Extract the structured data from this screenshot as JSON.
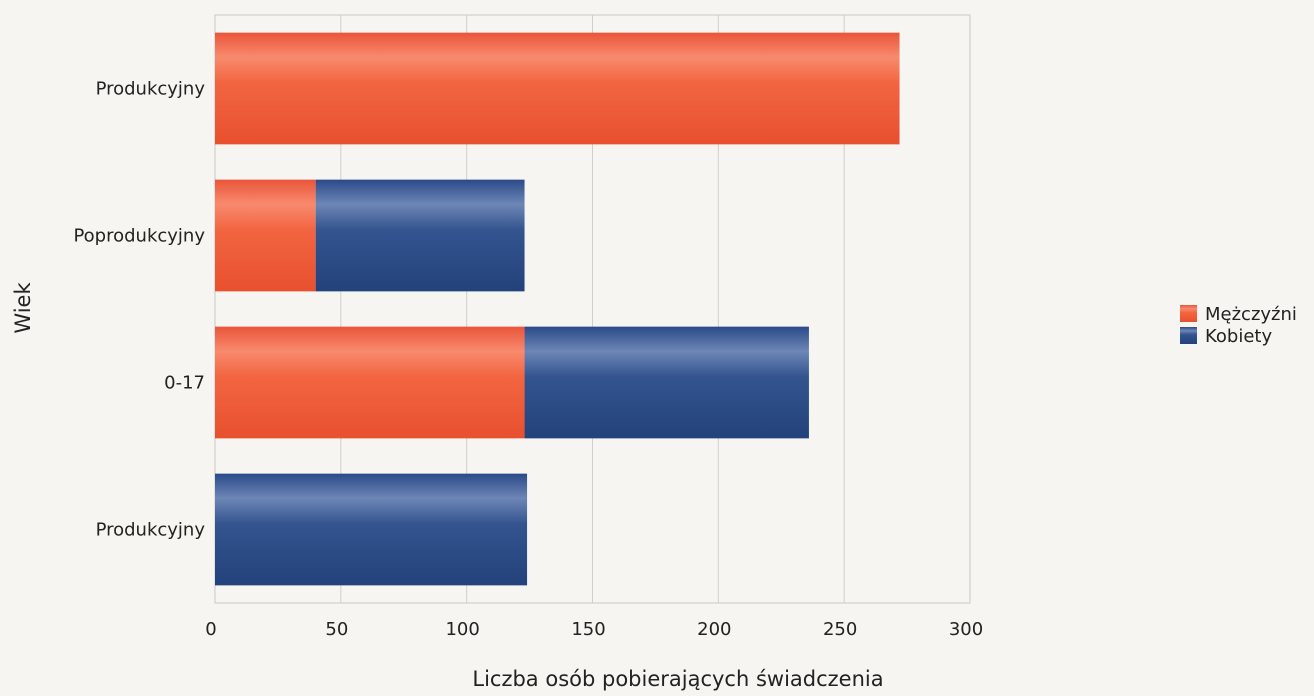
{
  "chart_data": {
    "type": "bar",
    "orientation": "horizontal",
    "stacked": true,
    "categories": [
      "Produkcyjny",
      "Poprodukcyjny",
      "0-17",
      "Produkcyjny"
    ],
    "series": [
      {
        "name": "Mężczyźni",
        "color": "#f26540",
        "values": [
          272,
          40,
          123,
          0
        ]
      },
      {
        "name": "Kobiety",
        "color": "#2f4f8f",
        "values": [
          0,
          83,
          113,
          124
        ]
      }
    ],
    "xlabel": "Liczba osób pobierających świadczenia",
    "ylabel": "Wiek",
    "xlim": [
      0,
      300
    ],
    "xticks": [
      "0",
      "50",
      "100",
      "150",
      "200",
      "250",
      "300"
    ],
    "grid": true,
    "legend_position": "right"
  }
}
